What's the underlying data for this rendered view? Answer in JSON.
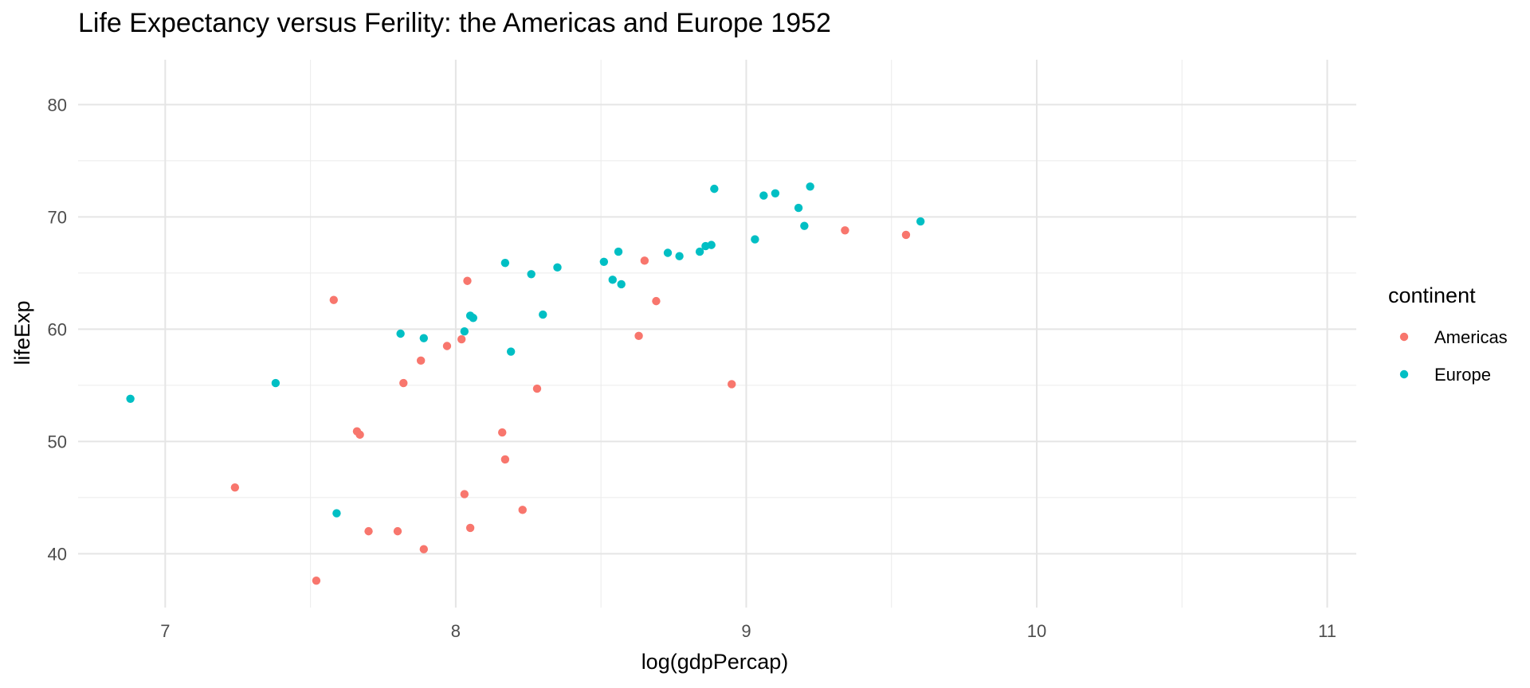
{
  "chart_data": {
    "type": "scatter",
    "title": "Life Expectancy versus Ferility: the Americas and Europe 1952",
    "xlabel": "log(gdpPercap)",
    "ylabel": "lifeExp",
    "xlim": [
      6.7,
      11.1
    ],
    "ylim": [
      35.2,
      84
    ],
    "x_ticks": [
      7,
      8,
      9,
      10,
      11
    ],
    "x_minor": [
      7.5,
      8.5,
      9.5,
      10.5
    ],
    "y_ticks": [
      40,
      50,
      60,
      70,
      80
    ],
    "y_minor": [
      45,
      55,
      65,
      75
    ],
    "grid": true,
    "legend": {
      "title": "continent",
      "position": "right"
    },
    "series": [
      {
        "name": "Americas",
        "color": "#F8766D",
        "points": [
          {
            "x": 7.24,
            "y": 45.9
          },
          {
            "x": 7.52,
            "y": 37.6
          },
          {
            "x": 7.58,
            "y": 62.6
          },
          {
            "x": 7.66,
            "y": 50.9
          },
          {
            "x": 7.67,
            "y": 50.6
          },
          {
            "x": 7.7,
            "y": 42.0
          },
          {
            "x": 7.8,
            "y": 42.0
          },
          {
            "x": 7.82,
            "y": 55.2
          },
          {
            "x": 7.88,
            "y": 57.2
          },
          {
            "x": 7.89,
            "y": 40.4
          },
          {
            "x": 7.97,
            "y": 58.5
          },
          {
            "x": 8.02,
            "y": 59.1
          },
          {
            "x": 8.03,
            "y": 45.3
          },
          {
            "x": 8.04,
            "y": 64.3
          },
          {
            "x": 8.05,
            "y": 42.3
          },
          {
            "x": 8.16,
            "y": 50.8
          },
          {
            "x": 8.17,
            "y": 48.4
          },
          {
            "x": 8.23,
            "y": 43.9
          },
          {
            "x": 8.28,
            "y": 54.7
          },
          {
            "x": 8.63,
            "y": 59.4
          },
          {
            "x": 8.65,
            "y": 66.1
          },
          {
            "x": 8.69,
            "y": 62.5
          },
          {
            "x": 8.95,
            "y": 55.1
          },
          {
            "x": 9.34,
            "y": 68.8
          },
          {
            "x": 9.55,
            "y": 68.4
          }
        ]
      },
      {
        "name": "Europe",
        "color": "#00BFC4",
        "points": [
          {
            "x": 6.88,
            "y": 53.8
          },
          {
            "x": 7.38,
            "y": 55.2
          },
          {
            "x": 7.59,
            "y": 43.6
          },
          {
            "x": 7.81,
            "y": 59.6
          },
          {
            "x": 7.89,
            "y": 59.2
          },
          {
            "x": 8.03,
            "y": 59.8
          },
          {
            "x": 8.05,
            "y": 61.2
          },
          {
            "x": 8.06,
            "y": 61.0
          },
          {
            "x": 8.17,
            "y": 65.9
          },
          {
            "x": 8.19,
            "y": 58.0
          },
          {
            "x": 8.26,
            "y": 64.9
          },
          {
            "x": 8.3,
            "y": 61.3
          },
          {
            "x": 8.35,
            "y": 65.5
          },
          {
            "x": 8.51,
            "y": 66.0
          },
          {
            "x": 8.54,
            "y": 64.4
          },
          {
            "x": 8.56,
            "y": 66.9
          },
          {
            "x": 8.57,
            "y": 64.0
          },
          {
            "x": 8.73,
            "y": 66.8
          },
          {
            "x": 8.77,
            "y": 66.5
          },
          {
            "x": 8.84,
            "y": 66.9
          },
          {
            "x": 8.86,
            "y": 67.4
          },
          {
            "x": 8.88,
            "y": 67.5
          },
          {
            "x": 8.89,
            "y": 72.5
          },
          {
            "x": 9.03,
            "y": 68.0
          },
          {
            "x": 9.06,
            "y": 71.9
          },
          {
            "x": 9.1,
            "y": 72.1
          },
          {
            "x": 9.18,
            "y": 70.8
          },
          {
            "x": 9.2,
            "y": 69.2
          },
          {
            "x": 9.22,
            "y": 72.7
          },
          {
            "x": 9.6,
            "y": 69.6
          }
        ]
      }
    ]
  }
}
